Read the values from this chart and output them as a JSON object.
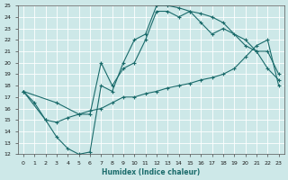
{
  "xlabel": "Humidex (Indice chaleur)",
  "ylabel": "",
  "xlim": [
    -0.5,
    23.5
  ],
  "ylim": [
    12,
    25
  ],
  "xticks": [
    0,
    1,
    2,
    3,
    4,
    5,
    6,
    7,
    8,
    9,
    10,
    11,
    12,
    13,
    14,
    15,
    16,
    17,
    18,
    19,
    20,
    21,
    22,
    23
  ],
  "yticks": [
    12,
    13,
    14,
    15,
    16,
    17,
    18,
    19,
    20,
    21,
    22,
    23,
    24,
    25
  ],
  "background_color": "#cde8e8",
  "grid_color": "#b8d8d8",
  "line_color": "#1a6b6b",
  "line1_x": [
    0,
    1,
    2,
    3,
    4,
    5,
    6,
    7,
    8,
    9,
    10,
    11,
    12,
    13,
    14,
    15,
    16,
    17,
    18,
    19,
    20,
    21,
    22,
    23
  ],
  "line1_y": [
    17.5,
    16.5,
    15.0,
    13.5,
    12.5,
    12.0,
    12.2,
    18.0,
    17.5,
    20.0,
    22.0,
    22.5,
    25.0,
    25.0,
    24.8,
    24.5,
    24.3,
    24.0,
    23.5,
    22.5,
    21.5,
    21.0,
    19.5,
    18.5
  ],
  "line2_x": [
    0,
    3,
    5,
    6,
    7,
    8,
    9,
    10,
    11,
    12,
    13,
    14,
    15,
    16,
    17,
    18,
    20,
    21,
    22,
    23
  ],
  "line2_y": [
    17.5,
    16.5,
    15.5,
    15.5,
    20.0,
    18.0,
    19.5,
    20.0,
    22.0,
    24.5,
    24.5,
    24.0,
    24.5,
    23.5,
    22.5,
    23.0,
    22.0,
    21.0,
    21.0,
    19.0
  ],
  "line3_x": [
    0,
    2,
    3,
    4,
    5,
    6,
    7,
    8,
    9,
    10,
    11,
    12,
    13,
    14,
    15,
    16,
    17,
    18,
    19,
    20,
    21,
    22,
    23
  ],
  "line3_y": [
    17.5,
    15.0,
    14.8,
    15.2,
    15.5,
    15.8,
    16.0,
    16.5,
    17.0,
    17.0,
    17.3,
    17.5,
    17.8,
    18.0,
    18.2,
    18.5,
    18.7,
    19.0,
    19.5,
    20.5,
    21.5,
    22.0,
    18.0
  ]
}
